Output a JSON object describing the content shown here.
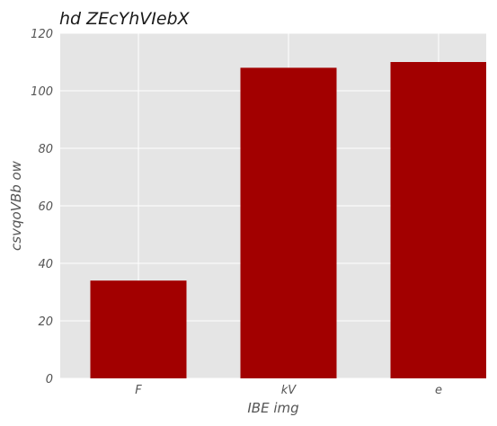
{
  "chart_data": {
    "type": "bar",
    "title": "hd ZEcYhVIebX",
    "xlabel": "IBE img",
    "ylabel": "csvqoVBb ow",
    "categories": [
      "F",
      "kV",
      "e"
    ],
    "values": [
      34,
      108,
      110
    ],
    "ylim": [
      0,
      120
    ],
    "yticks": [
      0,
      20,
      40,
      60,
      80,
      100,
      120
    ],
    "grid": true,
    "legend": "none",
    "colors": {
      "bar": "#a20000",
      "plot_background": "#e5e5e5",
      "grid": "#ffffff"
    }
  }
}
